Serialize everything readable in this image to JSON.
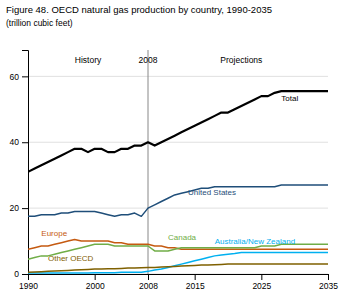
{
  "chart_data": {
    "type": "line",
    "title": "Figure 48. OECD natural gas production by country, 1990-2035",
    "subtitle": "(trillion cubic feet)",
    "x": [
      1990,
      1991,
      1992,
      1993,
      1994,
      1995,
      1996,
      1997,
      1998,
      1999,
      2000,
      2001,
      2002,
      2003,
      2004,
      2005,
      2006,
      2007,
      2008,
      2009,
      2010,
      2011,
      2012,
      2013,
      2014,
      2015,
      2016,
      2017,
      2018,
      2019,
      2020,
      2021,
      2022,
      2023,
      2024,
      2025,
      2026,
      2027,
      2028,
      2029,
      2030,
      2031,
      2032,
      2033,
      2034,
      2035
    ],
    "xlim": [
      1990,
      2035
    ],
    "xticks": [
      1990,
      2000,
      2008,
      2015,
      2025,
      2035
    ],
    "ylim": [
      0,
      68
    ],
    "yticks": [
      0,
      20,
      40,
      60
    ],
    "grid": true,
    "vlines": [
      2008
    ],
    "annotations": [
      {
        "text": "History",
        "x": 1999,
        "y": 66
      },
      {
        "text": "2008",
        "x": 2008,
        "y": 66
      },
      {
        "text": "Projections",
        "x": 2022,
        "y": 66
      }
    ],
    "series": [
      {
        "name": "Total",
        "color": "#000000",
        "label": {
          "x": 2028,
          "y": 52
        },
        "values": [
          31,
          32,
          33,
          34,
          35,
          36,
          37,
          38,
          38,
          37,
          38,
          38,
          37,
          37,
          38,
          38,
          39,
          39,
          40,
          39,
          40,
          41,
          42,
          43,
          44,
          45,
          46,
          47,
          48,
          49,
          49,
          50,
          51,
          52,
          53,
          54,
          54,
          55,
          55.5,
          55.5,
          55.5,
          55.5,
          55.5,
          55.5,
          55.5,
          55.5
        ]
      },
      {
        "name": "United States",
        "color": "#1f4e79",
        "label": {
          "x": 2014,
          "y": 23.5
        },
        "values": [
          17.5,
          17.5,
          18,
          18,
          18,
          18.5,
          18.5,
          19,
          19,
          19,
          19,
          18.5,
          18,
          17.5,
          18,
          18,
          18.5,
          17.5,
          20,
          21,
          22,
          23,
          24,
          24.5,
          25,
          25.5,
          26,
          26,
          26.5,
          26.5,
          26.5,
          26.5,
          26.5,
          26.5,
          26.5,
          26.5,
          26.5,
          26.5,
          27,
          27,
          27,
          27,
          27,
          27,
          27,
          27
        ]
      },
      {
        "name": "Europe",
        "color": "#c55a11",
        "label": {
          "x": 1992,
          "y": 10.8
        },
        "values": [
          7.5,
          8,
          8.5,
          8.5,
          9,
          9.5,
          10,
          10.5,
          10,
          10,
          10,
          10,
          10,
          9.5,
          9.5,
          9,
          9,
          9,
          9,
          8.5,
          8.5,
          8,
          8,
          7.5,
          7.5,
          7.5,
          7.5,
          7.5,
          7.5,
          7.5,
          7.5,
          7.5,
          7.5,
          7.5,
          7.5,
          7.5,
          7.5,
          7.5,
          7.5,
          7.5,
          7.5,
          7.5,
          7.5,
          7.5,
          7.5,
          7.5
        ]
      },
      {
        "name": "Canada",
        "color": "#70ad47",
        "label": {
          "x": 2011,
          "y": 9.8
        },
        "values": [
          4.5,
          5,
          5.5,
          5.5,
          6,
          6.5,
          7,
          7.5,
          8,
          8.5,
          9,
          9,
          9,
          8.5,
          8.5,
          8.5,
          8.5,
          8.5,
          8.5,
          7,
          7,
          7,
          7.5,
          8,
          8,
          8,
          8,
          8,
          8,
          8,
          8,
          8,
          8,
          8,
          8,
          8.5,
          8.5,
          8.5,
          9,
          9,
          9,
          9,
          9,
          9,
          9,
          9
        ]
      },
      {
        "name": "Australia/New Zealand",
        "color": "#00b0f0",
        "label": {
          "x": 2018,
          "y": 8.5
        },
        "values": [
          0.3,
          0.3,
          0.3,
          0.3,
          0.3,
          0.3,
          0.3,
          0.3,
          0.3,
          0.3,
          0.4,
          0.4,
          0.4,
          0.4,
          0.5,
          0.5,
          0.5,
          0.5,
          0.8,
          1.2,
          1.5,
          2.0,
          2.5,
          3.0,
          3.5,
          4.0,
          4.5,
          5.0,
          5.5,
          5.8,
          6.0,
          6.2,
          6.5,
          6.5,
          6.5,
          6.5,
          6.5,
          6.5,
          6.5,
          6.5,
          6.5,
          6.5,
          6.5,
          6.5,
          6.5,
          6.5
        ]
      },
      {
        "name": "Other OECD",
        "color": "#7f6000",
        "label": {
          "x": 1993,
          "y": 3.2
        },
        "values": [
          0.5,
          0.6,
          0.7,
          0.8,
          0.9,
          1.0,
          1.1,
          1.2,
          1.3,
          1.4,
          1.5,
          1.5,
          1.6,
          1.6,
          1.7,
          1.8,
          1.8,
          1.9,
          2.0,
          2.0,
          2.1,
          2.2,
          2.3,
          2.4,
          2.5,
          2.6,
          2.7,
          2.7,
          2.8,
          2.9,
          3.0,
          3.0,
          3.0,
          3.0,
          3.0,
          3.0,
          3.0,
          3.0,
          3.0,
          3.0,
          3.0,
          3.0,
          3.0,
          3.0,
          3.0,
          3.0
        ]
      }
    ]
  }
}
